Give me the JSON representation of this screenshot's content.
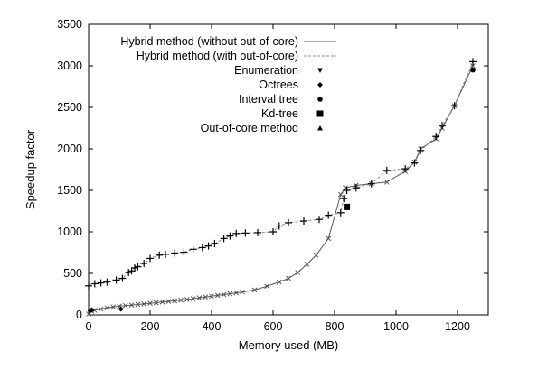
{
  "chart_data": {
    "type": "line",
    "xlabel": "Memory used (MB)",
    "ylabel": "Speedup factor",
    "xlim": [
      0,
      1300
    ],
    "ylim": [
      0,
      3500
    ],
    "x_ticks": [
      0,
      200,
      400,
      600,
      800,
      1000,
      1200
    ],
    "y_ticks": [
      0,
      500,
      1000,
      1500,
      2000,
      2500,
      3000,
      3500
    ],
    "grid": false,
    "legend_position": "top-left",
    "series": [
      {
        "name": "Hybrid method (without out-of-core)",
        "style": "solid-line-with-x-markers",
        "color": "#555555",
        "points": [
          [
            0,
            10
          ],
          [
            10,
            45
          ],
          [
            20,
            55
          ],
          [
            40,
            70
          ],
          [
            60,
            85
          ],
          [
            80,
            95
          ],
          [
            100,
            105
          ],
          [
            120,
            112
          ],
          [
            140,
            118
          ],
          [
            160,
            125
          ],
          [
            180,
            132
          ],
          [
            200,
            140
          ],
          [
            220,
            147
          ],
          [
            240,
            155
          ],
          [
            260,
            162
          ],
          [
            280,
            170
          ],
          [
            300,
            178
          ],
          [
            320,
            185
          ],
          [
            340,
            195
          ],
          [
            360,
            205
          ],
          [
            380,
            215
          ],
          [
            400,
            225
          ],
          [
            420,
            235
          ],
          [
            440,
            245
          ],
          [
            460,
            255
          ],
          [
            480,
            265
          ],
          [
            500,
            275
          ],
          [
            540,
            300
          ],
          [
            580,
            345
          ],
          [
            620,
            395
          ],
          [
            650,
            440
          ],
          [
            680,
            510
          ],
          [
            710,
            610
          ],
          [
            740,
            720
          ],
          [
            780,
            920
          ],
          [
            820,
            1450
          ],
          [
            835,
            1530
          ],
          [
            870,
            1560
          ],
          [
            920,
            1580
          ],
          [
            970,
            1600
          ],
          [
            1030,
            1730
          ],
          [
            1060,
            1840
          ],
          [
            1080,
            2000
          ],
          [
            1130,
            2120
          ],
          [
            1150,
            2250
          ],
          [
            1190,
            2520
          ],
          [
            1250,
            3000
          ]
        ]
      },
      {
        "name": "Hybrid method (with out-of-core)",
        "style": "dashed-line",
        "color": "#888888",
        "points": [
          [
            0,
            350
          ],
          [
            20,
            375
          ],
          [
            40,
            385
          ],
          [
            60,
            395
          ],
          [
            90,
            420
          ],
          [
            110,
            440
          ],
          [
            130,
            510
          ],
          [
            140,
            530
          ],
          [
            150,
            565
          ],
          [
            160,
            580
          ],
          [
            180,
            620
          ],
          [
            200,
            680
          ],
          [
            230,
            720
          ],
          [
            250,
            730
          ],
          [
            280,
            745
          ],
          [
            310,
            755
          ],
          [
            340,
            790
          ],
          [
            370,
            810
          ],
          [
            390,
            830
          ],
          [
            410,
            860
          ],
          [
            440,
            920
          ],
          [
            460,
            950
          ],
          [
            480,
            980
          ],
          [
            510,
            985
          ],
          [
            550,
            990
          ],
          [
            600,
            1000
          ],
          [
            620,
            1070
          ],
          [
            650,
            1110
          ],
          [
            700,
            1130
          ],
          [
            750,
            1150
          ],
          [
            780,
            1200
          ],
          [
            820,
            1230
          ],
          [
            830,
            1400
          ],
          [
            840,
            1500
          ],
          [
            870,
            1530
          ],
          [
            920,
            1580
          ],
          [
            970,
            1740
          ],
          [
            1030,
            1760
          ],
          [
            1060,
            1830
          ],
          [
            1080,
            1980
          ],
          [
            1130,
            2150
          ],
          [
            1150,
            2280
          ],
          [
            1190,
            2520
          ],
          [
            1250,
            3050
          ]
        ]
      },
      {
        "name": "Enumeration",
        "style": "triangle-down-marker",
        "points": []
      },
      {
        "name": "Octrees",
        "style": "diamond-marker",
        "points": [
          [
            5,
            50
          ],
          [
            10,
            60
          ],
          [
            105,
            70
          ]
        ]
      },
      {
        "name": "Interval tree",
        "style": "circle-marker",
        "points": [
          [
            1250,
            2950
          ]
        ]
      },
      {
        "name": "Kd-tree",
        "style": "square-marker",
        "points": [
          [
            840,
            1300
          ]
        ]
      },
      {
        "name": "Out-of-core method",
        "style": "triangle-up-marker",
        "points": []
      }
    ]
  }
}
